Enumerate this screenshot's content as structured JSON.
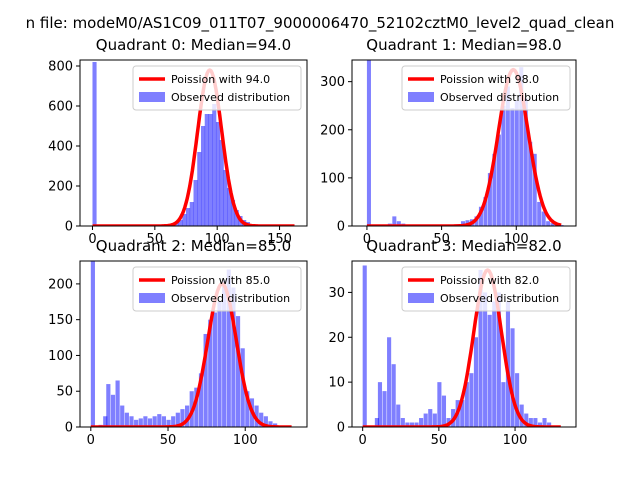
{
  "suptitle": "n file: modeM0/AS1C09_011T07_9000006470_52102cztM0_level2_quad_clean",
  "colors": {
    "hist": "#0000ff",
    "hist_alpha": 0.5,
    "poisson": "#ff0000",
    "axes": "#000000"
  },
  "chart_data": [
    {
      "type": "bar",
      "title": "Quadrant 0: Median=94.0",
      "xlim": [
        -10,
        172
      ],
      "ylim": [
        0,
        830
      ],
      "xticks": [
        0,
        50,
        100,
        150
      ],
      "yticks": [
        0,
        200,
        400,
        600,
        800
      ],
      "legend": {
        "placement": "top-right",
        "entries": [
          "Poission with 94.0",
          "Observed distribution"
        ]
      },
      "bin_width": 3.3,
      "hist": [
        [
          0,
          820
        ],
        [
          57,
          5
        ],
        [
          60,
          8
        ],
        [
          63,
          10
        ],
        [
          66,
          20
        ],
        [
          69,
          30
        ],
        [
          72,
          60
        ],
        [
          75,
          90
        ],
        [
          78,
          120
        ],
        [
          81,
          230
        ],
        [
          84,
          370
        ],
        [
          87,
          500
        ],
        [
          90,
          560
        ],
        [
          93,
          560
        ],
        [
          96,
          610
        ],
        [
          99,
          520
        ],
        [
          102,
          430
        ],
        [
          105,
          280
        ],
        [
          108,
          190
        ],
        [
          111,
          130
        ],
        [
          114,
          80
        ],
        [
          117,
          50
        ],
        [
          120,
          30
        ],
        [
          123,
          20
        ],
        [
          126,
          10
        ],
        [
          130,
          4
        ],
        [
          135,
          2
        ],
        [
          140,
          1
        ]
      ],
      "poisson_label": "Poission with 94.0",
      "poisson_mean": 94.0,
      "poisson_peak": 780,
      "poisson_range": [
        0,
        162
      ]
    },
    {
      "type": "bar",
      "title": "Quadrant 1: Median=98.0",
      "xlim": [
        -10,
        140
      ],
      "ylim": [
        0,
        345
      ],
      "xticks": [
        0,
        50,
        100
      ],
      "yticks": [
        0,
        100,
        200,
        300
      ],
      "legend": {
        "placement": "top-right",
        "entries": [
          "Poission with 98.0",
          "Observed distribution"
        ]
      },
      "bin_width": 2.7,
      "hist": [
        [
          0,
          345
        ],
        [
          14,
          5
        ],
        [
          17,
          20
        ],
        [
          20,
          10
        ],
        [
          23,
          5
        ],
        [
          31,
          3
        ],
        [
          37,
          2
        ],
        [
          44,
          1
        ],
        [
          50,
          3
        ],
        [
          57,
          2
        ],
        [
          60,
          4
        ],
        [
          63,
          10
        ],
        [
          66,
          12
        ],
        [
          69,
          14
        ],
        [
          72,
          20
        ],
        [
          75,
          40
        ],
        [
          78,
          60
        ],
        [
          81,
          110
        ],
        [
          84,
          150
        ],
        [
          87,
          190
        ],
        [
          90,
          250
        ],
        [
          93,
          290
        ],
        [
          96,
          245
        ],
        [
          99,
          260
        ],
        [
          102,
          330
        ],
        [
          105,
          265
        ],
        [
          108,
          175
        ],
        [
          111,
          150
        ],
        [
          114,
          50
        ],
        [
          117,
          30
        ],
        [
          120,
          10
        ],
        [
          123,
          6
        ],
        [
          126,
          3
        ],
        [
          129,
          2
        ]
      ],
      "poisson_label": "Poission with 98.0",
      "poisson_mean": 98.0,
      "poisson_peak": 325,
      "poisson_range": [
        0,
        130
      ]
    },
    {
      "type": "bar",
      "title": "Quadrant 2: Median=85.0",
      "xlim": [
        -7,
        140
      ],
      "ylim": [
        0,
        232
      ],
      "xticks": [
        0,
        50,
        100
      ],
      "yticks": [
        0,
        50,
        100,
        150,
        200
      ],
      "legend": {
        "placement": "top-right",
        "entries": [
          "Poission with 85.0",
          "Observed distribution"
        ]
      },
      "bin_width": 2.7,
      "hist": [
        [
          0,
          232
        ],
        [
          5,
          3
        ],
        [
          8,
          15
        ],
        [
          10,
          60
        ],
        [
          13,
          45
        ],
        [
          16,
          65
        ],
        [
          19,
          30
        ],
        [
          22,
          20
        ],
        [
          25,
          15
        ],
        [
          28,
          10
        ],
        [
          31,
          12
        ],
        [
          34,
          15
        ],
        [
          37,
          12
        ],
        [
          40,
          15
        ],
        [
          43,
          18
        ],
        [
          46,
          15
        ],
        [
          49,
          10
        ],
        [
          52,
          15
        ],
        [
          55,
          20
        ],
        [
          58,
          25
        ],
        [
          61,
          30
        ],
        [
          64,
          50
        ],
        [
          67,
          55
        ],
        [
          70,
          75
        ],
        [
          73,
          130
        ],
        [
          76,
          150
        ],
        [
          79,
          160
        ],
        [
          82,
          175
        ],
        [
          85,
          205
        ],
        [
          88,
          220
        ],
        [
          91,
          195
        ],
        [
          94,
          155
        ],
        [
          97,
          110
        ],
        [
          100,
          50
        ],
        [
          103,
          40
        ],
        [
          106,
          30
        ],
        [
          109,
          20
        ],
        [
          112,
          15
        ],
        [
          115,
          8
        ],
        [
          118,
          5
        ],
        [
          122,
          2
        ]
      ],
      "poisson_label": "Poission with 85.0",
      "poisson_mean": 85.0,
      "poisson_peak": 200,
      "poisson_range": [
        0,
        130
      ]
    },
    {
      "type": "bar",
      "title": "Quadrant 3: Median=82.0",
      "xlim": [
        -7,
        140
      ],
      "ylim": [
        0,
        37
      ],
      "xticks": [
        0,
        50,
        100
      ],
      "yticks": [
        0,
        10,
        20,
        30
      ],
      "legend": {
        "placement": "top-right",
        "entries": [
          "Poission with 82.0",
          "Observed distribution"
        ]
      },
      "bin_width": 2.7,
      "hist": [
        [
          0,
          36
        ],
        [
          8,
          2
        ],
        [
          10,
          10
        ],
        [
          13,
          8
        ],
        [
          16,
          20
        ],
        [
          19,
          14
        ],
        [
          22,
          5
        ],
        [
          25,
          2
        ],
        [
          28,
          1
        ],
        [
          31,
          1
        ],
        [
          34,
          1
        ],
        [
          37,
          2
        ],
        [
          40,
          3
        ],
        [
          43,
          4
        ],
        [
          46,
          3
        ],
        [
          49,
          10
        ],
        [
          52,
          7
        ],
        [
          55,
          2
        ],
        [
          58,
          4
        ],
        [
          61,
          6
        ],
        [
          64,
          6
        ],
        [
          67,
          10
        ],
        [
          70,
          12
        ],
        [
          73,
          20
        ],
        [
          76,
          35
        ],
        [
          79,
          30
        ],
        [
          82,
          25
        ],
        [
          85,
          28
        ],
        [
          88,
          30
        ],
        [
          91,
          10
        ],
        [
          94,
          28
        ],
        [
          97,
          22
        ],
        [
          100,
          12
        ],
        [
          103,
          5
        ],
        [
          106,
          3
        ],
        [
          109,
          2
        ],
        [
          112,
          2
        ],
        [
          115,
          1
        ],
        [
          118,
          2
        ],
        [
          121,
          1
        ]
      ],
      "poisson_label": "Poission with 82.0",
      "poisson_mean": 82.0,
      "poisson_peak": 35,
      "poisson_range": [
        0,
        130
      ]
    }
  ]
}
